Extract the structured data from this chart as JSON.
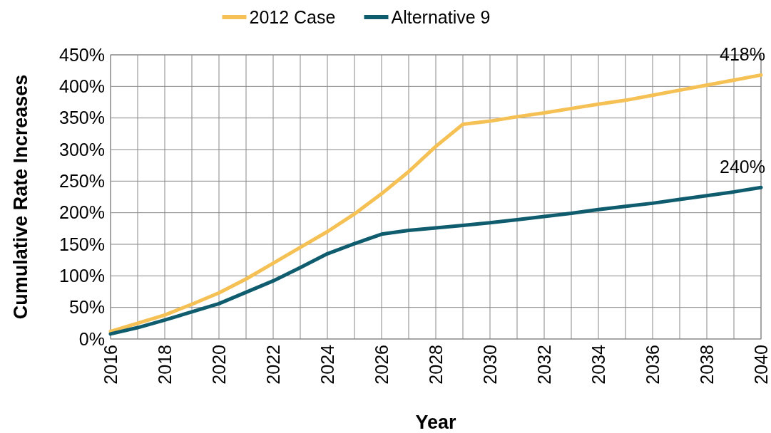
{
  "chart_data": {
    "type": "line",
    "xlabel": "Year",
    "ylabel": "Cumulative Rate Increases",
    "x": [
      2016,
      2017,
      2018,
      2019,
      2020,
      2021,
      2022,
      2023,
      2024,
      2025,
      2026,
      2027,
      2028,
      2029,
      2030,
      2031,
      2032,
      2033,
      2034,
      2035,
      2036,
      2037,
      2038,
      2039,
      2040
    ],
    "series": [
      {
        "name": "2012 Case",
        "color": "#f5c155",
        "values": [
          12,
          25,
          38,
          55,
          73,
          95,
          120,
          145,
          170,
          198,
          230,
          265,
          305,
          340,
          345,
          352,
          358,
          365,
          372,
          378,
          386,
          394,
          402,
          410,
          418
        ]
      },
      {
        "name": "Alternative 9",
        "color": "#0e5c6e",
        "values": [
          8,
          18,
          30,
          43,
          56,
          74,
          92,
          113,
          135,
          151,
          166,
          172,
          176,
          180,
          184,
          189,
          194,
          199,
          205,
          210,
          215,
          221,
          227,
          233,
          240
        ]
      }
    ],
    "xlim": [
      2016,
      2040
    ],
    "xticks": [
      2016,
      {
        "value": 2017,
        "label": null
      },
      2018,
      {
        "value": 2019,
        "label": null
      },
      2020,
      {
        "value": 2021,
        "label": null
      },
      2022,
      {
        "value": 2023,
        "label": null
      },
      2024,
      {
        "value": 2025,
        "label": null
      },
      2026,
      {
        "value": 2027,
        "label": null
      },
      2028,
      {
        "value": 2029,
        "label": null
      },
      2030,
      {
        "value": 2031,
        "label": null
      },
      2032,
      {
        "value": 2033,
        "label": null
      },
      2034,
      {
        "value": 2035,
        "label": null
      },
      2036,
      {
        "value": 2037,
        "label": null
      },
      2038,
      {
        "value": 2039,
        "label": null
      },
      2040
    ],
    "ylim": [
      0,
      450
    ],
    "yticks": [
      {
        "value": 0,
        "label": "0%"
      },
      {
        "value": 50,
        "label": "50%"
      },
      {
        "value": 100,
        "label": "100%"
      },
      {
        "value": 150,
        "label": "150%"
      },
      {
        "value": 200,
        "label": "200%"
      },
      {
        "value": 250,
        "label": "250%"
      },
      {
        "value": 300,
        "label": "300%"
      },
      {
        "value": 350,
        "label": "350%"
      },
      {
        "value": 400,
        "label": "400%"
      },
      {
        "value": 450,
        "label": "450%"
      }
    ],
    "grid": true,
    "legend": "top",
    "marker": "none",
    "line_style": "solid",
    "annotations": [
      {
        "text": "418%",
        "x": 2040,
        "y": 418
      },
      {
        "text": "240%",
        "x": 2040,
        "y": 240
      }
    ]
  }
}
